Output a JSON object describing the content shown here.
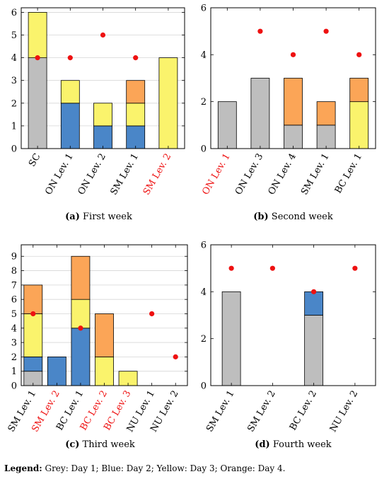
{
  "palette": {
    "day1": "#bebebe",
    "day2": "#4a86c8",
    "day3": "#faf36c",
    "day4": "#fba557",
    "marker": "#ee1111",
    "highlight_label": "#ee1111",
    "grid": "#d6d6d6"
  },
  "legend": {
    "label": "Legend:",
    "text": "Grey: Day 1; Blue: Day 2; Yellow: Day 3; Orange: Day 4."
  },
  "chart_data": [
    {
      "type": "bar",
      "stacked": true,
      "caption_letter": "(a)",
      "caption_text": "First week",
      "ylim": [
        0,
        6.2
      ],
      "yticks": [
        0,
        1,
        2,
        3,
        4,
        5,
        6
      ],
      "grid": true,
      "categories": [
        "SC",
        "ON Lev. 1",
        "ON Lev. 2",
        "SM Lev. 1",
        "SM Lev. 2"
      ],
      "highlighted": [
        false,
        false,
        false,
        false,
        true
      ],
      "series": [
        {
          "values": [
            4,
            0,
            0,
            0,
            0
          ]
        },
        {
          "values": [
            0,
            2,
            1,
            1,
            0
          ]
        },
        {
          "values": [
            2,
            1,
            1,
            1,
            4
          ]
        },
        {
          "values": [
            0,
            0,
            0,
            1,
            0
          ]
        }
      ],
      "markers": [
        4,
        4,
        5,
        4,
        null
      ]
    },
    {
      "type": "bar",
      "stacked": true,
      "caption_letter": "(b)",
      "caption_text": "Second week",
      "ylim": [
        0,
        6
      ],
      "yticks": [
        0,
        2,
        4,
        6
      ],
      "grid": false,
      "categories": [
        "ON Lev. 1",
        "ON Lev. 3",
        "ON Lev. 4",
        "SM Lev. 1",
        "BC Lev. 1"
      ],
      "highlighted": [
        true,
        false,
        false,
        false,
        false
      ],
      "series": [
        {
          "values": [
            2,
            3,
            1,
            1,
            0
          ]
        },
        {
          "values": [
            0,
            0,
            0,
            0,
            0
          ]
        },
        {
          "values": [
            0,
            0,
            0,
            0,
            2
          ]
        },
        {
          "values": [
            0,
            0,
            2,
            1,
            1
          ]
        }
      ],
      "markers": [
        null,
        5,
        4,
        5,
        4
      ]
    },
    {
      "type": "bar",
      "stacked": true,
      "caption_letter": "(c)",
      "caption_text": "Third week",
      "ylim": [
        0,
        9.8
      ],
      "yticks": [
        0,
        1,
        2,
        3,
        4,
        5,
        6,
        7,
        8,
        9
      ],
      "grid": true,
      "categories": [
        "SM Lev. 1",
        "SM Lev. 2",
        "BC Lev. 1",
        "BC Lev. 2",
        "BC Lev. 3",
        "NU Lev. 1",
        "NU Lev. 2"
      ],
      "highlighted": [
        false,
        true,
        false,
        true,
        true,
        false,
        false
      ],
      "series": [
        {
          "values": [
            1,
            0,
            0,
            0,
            0,
            0,
            0
          ]
        },
        {
          "values": [
            1,
            2,
            4,
            0,
            0,
            0,
            0
          ]
        },
        {
          "values": [
            3,
            0,
            2,
            2,
            1,
            0,
            0
          ]
        },
        {
          "values": [
            2,
            0,
            3,
            3,
            0,
            0,
            0
          ]
        }
      ],
      "markers": [
        5,
        null,
        4,
        null,
        null,
        5,
        2
      ]
    },
    {
      "type": "bar",
      "stacked": true,
      "caption_letter": "(d)",
      "caption_text": "Fourth week",
      "ylim": [
        0,
        6
      ],
      "yticks": [
        0,
        2,
        4,
        6
      ],
      "grid": false,
      "categories": [
        "SM Lev. 1",
        "SM Lev. 2",
        "BC Lev. 2",
        "NU Lev. 2"
      ],
      "highlighted": [
        false,
        false,
        false,
        false
      ],
      "series": [
        {
          "values": [
            4,
            0,
            3,
            0
          ]
        },
        {
          "values": [
            0,
            0,
            1,
            0
          ]
        },
        {
          "values": [
            0,
            0,
            0,
            0
          ]
        },
        {
          "values": [
            0,
            0,
            0,
            0
          ]
        }
      ],
      "markers": [
        5,
        5,
        4,
        5
      ]
    }
  ]
}
